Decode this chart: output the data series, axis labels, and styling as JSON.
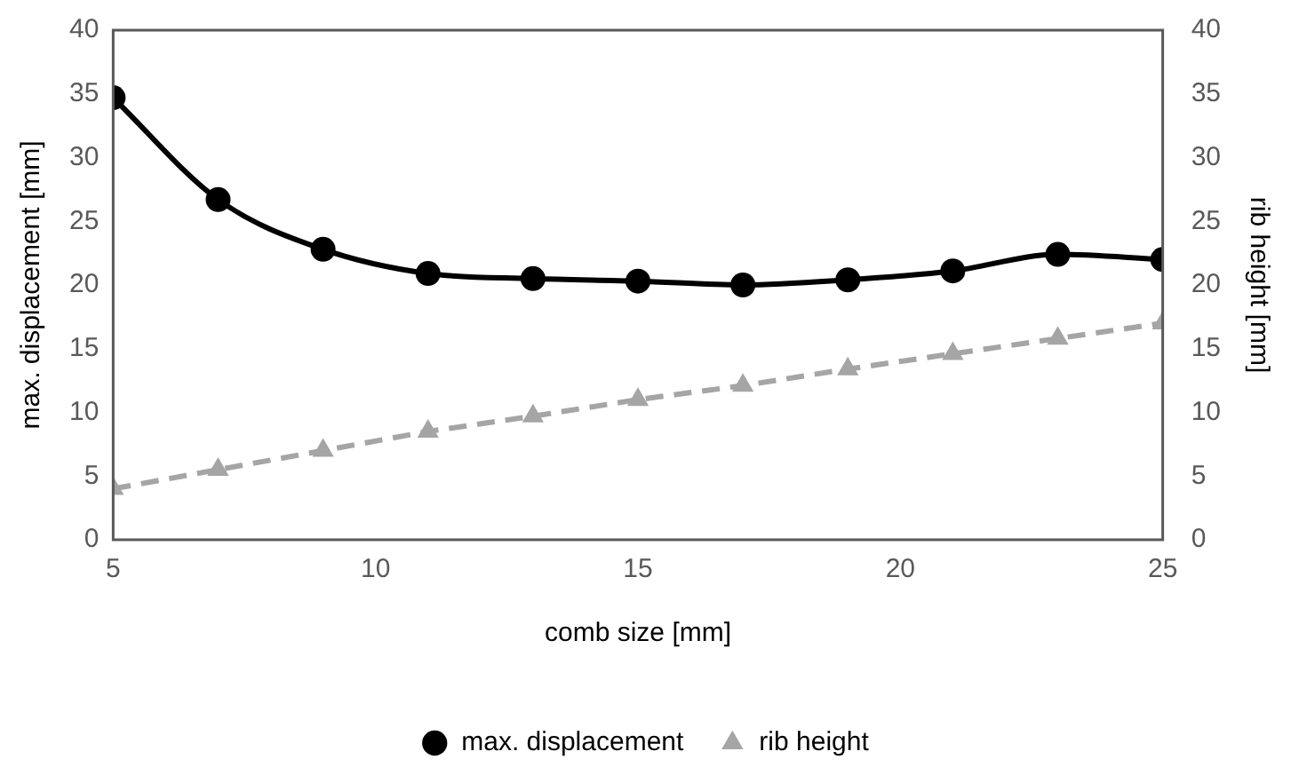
{
  "chart_data": {
    "type": "line",
    "xlabel": "comb size [mm]",
    "ylabel": "max. displacement [mm]",
    "y2label": "rib height [mm]",
    "x": [
      5,
      7,
      9,
      11,
      13,
      15,
      17,
      19,
      21,
      23,
      25
    ],
    "xlim": [
      5,
      25
    ],
    "xticks": [
      5,
      10,
      15,
      20,
      25
    ],
    "ylim": [
      0,
      40
    ],
    "yticks": [
      0,
      5,
      10,
      15,
      20,
      25,
      30,
      35,
      40
    ],
    "y2lim": [
      0,
      40
    ],
    "y2ticks": [
      0,
      5,
      10,
      15,
      20,
      25,
      30,
      35,
      40
    ],
    "grid": false,
    "legend": "bottom",
    "series": [
      {
        "name": "max. displacement",
        "color": "#000000",
        "marker": "circle",
        "line_style": "solid",
        "values": [
          34.7,
          26.7,
          22.8,
          20.9,
          20.5,
          20.3,
          20.0,
          20.4,
          21.1,
          22.4,
          22.0
        ]
      },
      {
        "name": "rib height",
        "color": "#a5a5a5",
        "marker": "triangle",
        "line_style": "dashed",
        "axis": "y2",
        "values": [
          4.0,
          5.5,
          7.0,
          8.5,
          9.7,
          11.0,
          12.1,
          13.4,
          14.6,
          15.8,
          17.0
        ]
      }
    ]
  }
}
